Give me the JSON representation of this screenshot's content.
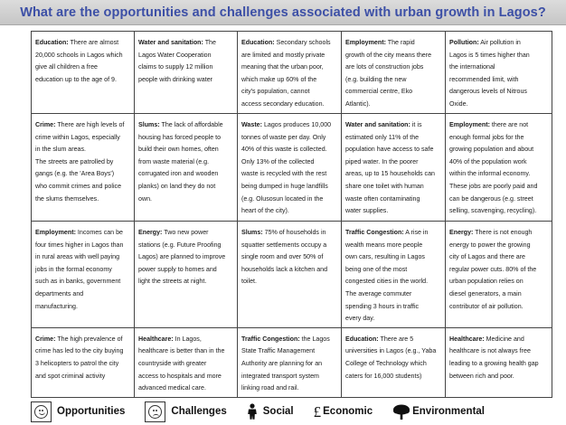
{
  "title": "What are the opportunities and challenges associated with urban growth in Lagos?",
  "rows": [
    [
      {
        "heading": "Education:",
        "text": " There are almost\n20,000 schools in Lagos which\ngive all children a free\neducation up to the age of 9."
      },
      {
        "heading": "Water and sanitation:",
        "text": " The\nLagos Water Cooperation\nclaims to supply 12 million\npeople with drinking water"
      },
      {
        "heading": "Education:",
        "text": " Secondary schools\nare limited and mostly private\nmeaning that the urban poor,\nwhich make up 60% of the\ncity's population, cannot\naccess secondary education."
      },
      {
        "heading": "Employment:",
        "text": " The rapid\ngrowth of the city means there\nare lots of construction jobs\n(e.g. building the new\ncommercial centre, Eko\nAtlantic)."
      },
      {
        "heading": "Pollution:",
        "text": " Air pollution in\nLagos is 5 times higher than\nthe international\nrecommended limit, with\ndangerous levels of Nitrous\nOxide."
      }
    ],
    [
      {
        "heading": "Crime:",
        "text": " There are high levels of\ncrime within Lagos, especially\nin the slum areas.\nThe streets are patrolled by\ngangs (e.g. the 'Area Boys')\nwho commit crimes and police\nthe slums themselves."
      },
      {
        "heading": "Slums:",
        "text": " The lack of affordable\nhousing has forced people to\nbuild their own homes, often\nfrom waste material (e.g.\ncorrugated iron and wooden\nplanks) on land they do not\nown."
      },
      {
        "heading": "Waste:",
        "text": " Lagos produces 10,000\ntonnes of waste per day. Only\n40% of this waste is collected.\nOnly 13% of the collected\nwaste is recycled with the rest\nbeing dumped in huge landfills\n(e.g. Olusosun located in the\nheart of the city)."
      },
      {
        "heading": "Water and sanitation:",
        "text": " it is\nestimated only 11% of the\npopulation have access to safe\npiped water. In the poorer\nareas, up to 15 households can\nshare one toilet with human\nwaste often contaminating\nwater supplies."
      },
      {
        "heading": "Employment:",
        "text": " there are not\nenough formal jobs for the\ngrowing population and about\n40% of the population work\nwithin the informal economy.\nThese jobs are poorly paid and\ncan be dangerous (e.g. street\nselling, scavenging, recycling)."
      }
    ],
    [
      {
        "heading": "Employment:",
        "text": " Incomes can be\nfour times higher in Lagos than\nin rural areas with well paying\njobs in the formal economy\nsuch as in banks, government\ndepartments and\nmanufacturing."
      },
      {
        "heading": "Energy:",
        "text": " Two new power\nstations (e.g. Future Proofing\nLagos) are planned to improve\npower supply to homes and\nlight the streets at night."
      },
      {
        "heading": "Slums:",
        "text": " 75% of households in\nsquatter settlements occupy a\nsingle room and over 50% of\nhouseholds lack a kitchen and\ntoilet."
      },
      {
        "heading": "Traffic Congestion:",
        "text": " A rise in\nwealth means more people\nown cars, resulting in Lagos\nbeing one of the most\ncongested cities in the world.\nThe average commuter\nspending 3 hours in traffic\nevery day."
      },
      {
        "heading": "Energy:",
        "text": " There is not enough\nenergy to power the growing\ncity of Lagos and there are\nregular power cuts. 80% of the\nurban population relies on\ndiesel generators, a main\ncontributor of air pollution."
      }
    ],
    [
      {
        "heading": "Crime:",
        "text": " The high prevalence of\ncrime has led to the city buying\n3 helicopters to patrol the city\nand spot criminal activity"
      },
      {
        "heading": "Healthcare:",
        "text": " In Lagos,\nhealthcare is better than in the\ncountryside with greater\naccess to hospitals and more\nadvanced medical care."
      },
      {
        "heading": "Traffic Congestion:",
        "text": " the Lagos\nState Traffic Management\nAuthority are planning for an\nintegrated transport system\nlinking road and rail."
      },
      {
        "heading": "Education:",
        "text": " There are 5\nuniversities in Lagos (e.g., Yaba\nCollege of Technology which\ncaters for 16,000 students)"
      },
      {
        "heading": "Healthcare:",
        "text": " Medicine and\nhealthcare is not always free\nleading to a growing health gap\nbetween rich and poor."
      }
    ]
  ],
  "legend": {
    "opportunities": "Opportunities",
    "challenges": "Challenges",
    "social": "Social",
    "economic_symbol": "£",
    "economic": "Economic",
    "environmental": "Environmental"
  },
  "icons": {
    "opportunities": "smiley-face-icon",
    "challenges": "sad-face-icon",
    "social": "person-icon",
    "economic": "pound-sign-icon",
    "environmental": "tree-icon"
  }
}
